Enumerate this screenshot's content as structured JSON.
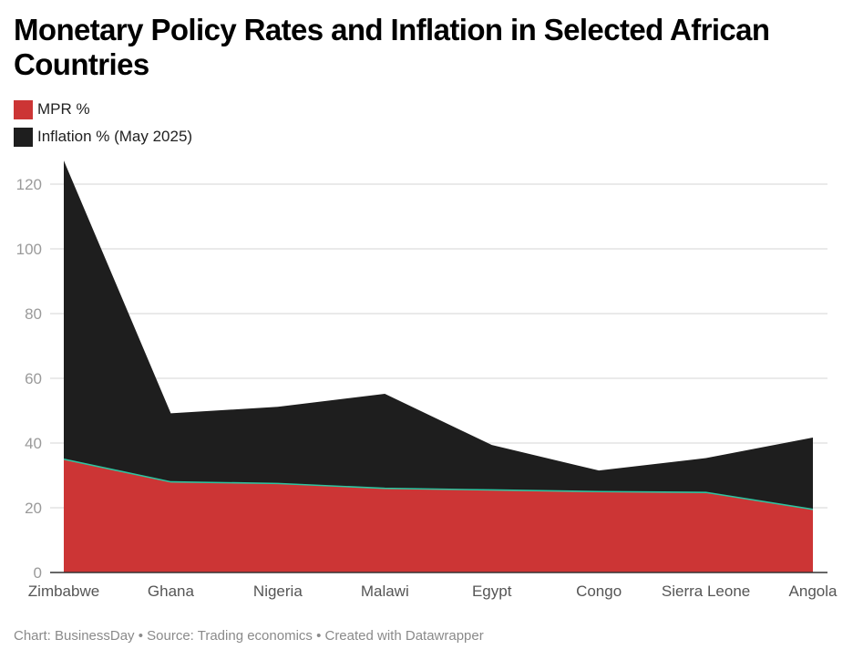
{
  "chart_data": {
    "type": "area",
    "stacked": true,
    "title": "Monetary Policy Rates and Inflation in Selected African Countries",
    "xlabel": "",
    "ylabel": "",
    "categories": [
      "Zimbabwe",
      "Ghana",
      "Nigeria",
      "Malawi",
      "Egypt",
      "Congo",
      "Sierra Leone",
      "Angola"
    ],
    "series": [
      {
        "name": "MPR %",
        "color": "#cc3535",
        "values": [
          35,
          28,
          27.5,
          26,
          25.5,
          25,
          24.75,
          19.5
        ]
      },
      {
        "name": "Inflation % (May 2025)",
        "color": "#1e1e1e",
        "values": [
          92.3,
          21.2,
          23.7,
          29.2,
          13.9,
          6.5,
          10.6,
          22.2
        ]
      }
    ],
    "ylim": [
      0,
      127
    ],
    "yticks": [
      0,
      20,
      40,
      60,
      80,
      100,
      120
    ],
    "grid": true,
    "legend_position": "top-left",
    "line_color": "#2ec4a0"
  },
  "footer": "Chart: BusinessDay • Source: Trading economics • Created with Datawrapper"
}
